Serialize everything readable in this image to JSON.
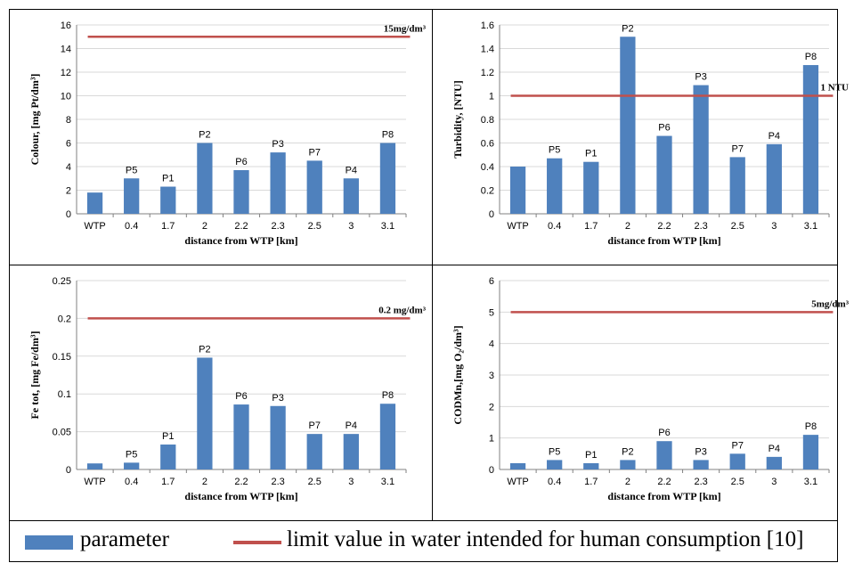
{
  "colors": {
    "bar": "#4f81bd",
    "limit": "#c0504d",
    "grid": "#d9d9d9"
  },
  "legend": {
    "bar_label": "parameter",
    "line_label": "limit value in water intended for human consumption [10]"
  },
  "chart_data": [
    {
      "type": "bar",
      "title": "",
      "ylabel": "Colour, [mg Pt/dm³]",
      "xlabel": "distance from WTP [km]",
      "categories": [
        "WTP",
        "0.4",
        "1.7",
        "2",
        "2.2",
        "2.3",
        "2.5",
        "3",
        "3.1"
      ],
      "point_labels": [
        "",
        "P5",
        "P1",
        "P2",
        "P6",
        "P3",
        "P7",
        "P4",
        "P8"
      ],
      "values": [
        1.8,
        3.0,
        2.3,
        6.0,
        3.7,
        5.2,
        4.5,
        3.0,
        6.0
      ],
      "ylim": [
        0,
        16
      ],
      "yticks": [
        "0",
        "2",
        "4",
        "6",
        "8",
        "10",
        "12",
        "14",
        "16"
      ],
      "ytick_values": [
        0,
        2,
        4,
        6,
        8,
        10,
        12,
        14,
        16
      ],
      "limit_value": 15,
      "limit_label": "15mg/dm³",
      "grid": true
    },
    {
      "type": "bar",
      "title": "",
      "ylabel": "Turbidity, [NTU]",
      "xlabel": "distance from WTP [km]",
      "categories": [
        "WTP",
        "0.4",
        "1.7",
        "2",
        "2.2",
        "2.3",
        "2.5",
        "3",
        "3.1"
      ],
      "point_labels": [
        "",
        "P5",
        "P1",
        "P2",
        "P6",
        "P3",
        "P7",
        "P4",
        "P8"
      ],
      "values": [
        0.4,
        0.47,
        0.44,
        1.5,
        0.66,
        1.09,
        0.48,
        0.59,
        1.26
      ],
      "ylim": [
        0,
        1.6
      ],
      "yticks": [
        "0",
        "0.2",
        "0.4",
        "0.6",
        "0.8",
        "1",
        "1.2",
        "1.4",
        "1.6"
      ],
      "ytick_values": [
        0,
        0.2,
        0.4,
        0.6,
        0.8,
        1,
        1.2,
        1.4,
        1.6
      ],
      "limit_value": 1,
      "limit_label": "1 NTU",
      "grid": true
    },
    {
      "type": "bar",
      "title": "",
      "ylabel": "Fe tot, [mg Fe/dm³]",
      "xlabel": "distance from WTP [km]",
      "categories": [
        "WTP",
        "0.4",
        "1.7",
        "2",
        "2.2",
        "2.3",
        "2.5",
        "3",
        "3.1"
      ],
      "point_labels": [
        "",
        "P5",
        "P1",
        "P2",
        "P6",
        "P3",
        "P7",
        "P4",
        "P8"
      ],
      "values": [
        0.008,
        0.009,
        0.033,
        0.148,
        0.086,
        0.084,
        0.047,
        0.047,
        0.087
      ],
      "ylim": [
        0,
        0.25
      ],
      "yticks": [
        "0",
        "0.05",
        "0.1",
        "0.15",
        "0.2",
        "0.25"
      ],
      "ytick_values": [
        0,
        0.05,
        0.1,
        0.15,
        0.2,
        0.25
      ],
      "limit_value": 0.2,
      "limit_label": "0.2 mg/dm³",
      "grid": true
    },
    {
      "type": "bar",
      "title": "",
      "ylabel": "CODMn,[mg O₂/dm³]",
      "xlabel": "distance from WTP [km]",
      "categories": [
        "WTP",
        "0.4",
        "1.7",
        "2",
        "2.2",
        "2.3",
        "2.5",
        "3",
        "3.1"
      ],
      "point_labels": [
        "",
        "P5",
        "P1",
        "P2",
        "P6",
        "P3",
        "P7",
        "P4",
        "P8"
      ],
      "values": [
        0.2,
        0.3,
        0.2,
        0.3,
        0.9,
        0.3,
        0.5,
        0.4,
        1.1
      ],
      "ylim": [
        0,
        6
      ],
      "yticks": [
        "0",
        "1",
        "2",
        "3",
        "4",
        "5",
        "6"
      ],
      "ytick_values": [
        0,
        1,
        2,
        3,
        4,
        5,
        6
      ],
      "limit_value": 5,
      "limit_label": "5mg/dm³",
      "grid": true
    }
  ]
}
